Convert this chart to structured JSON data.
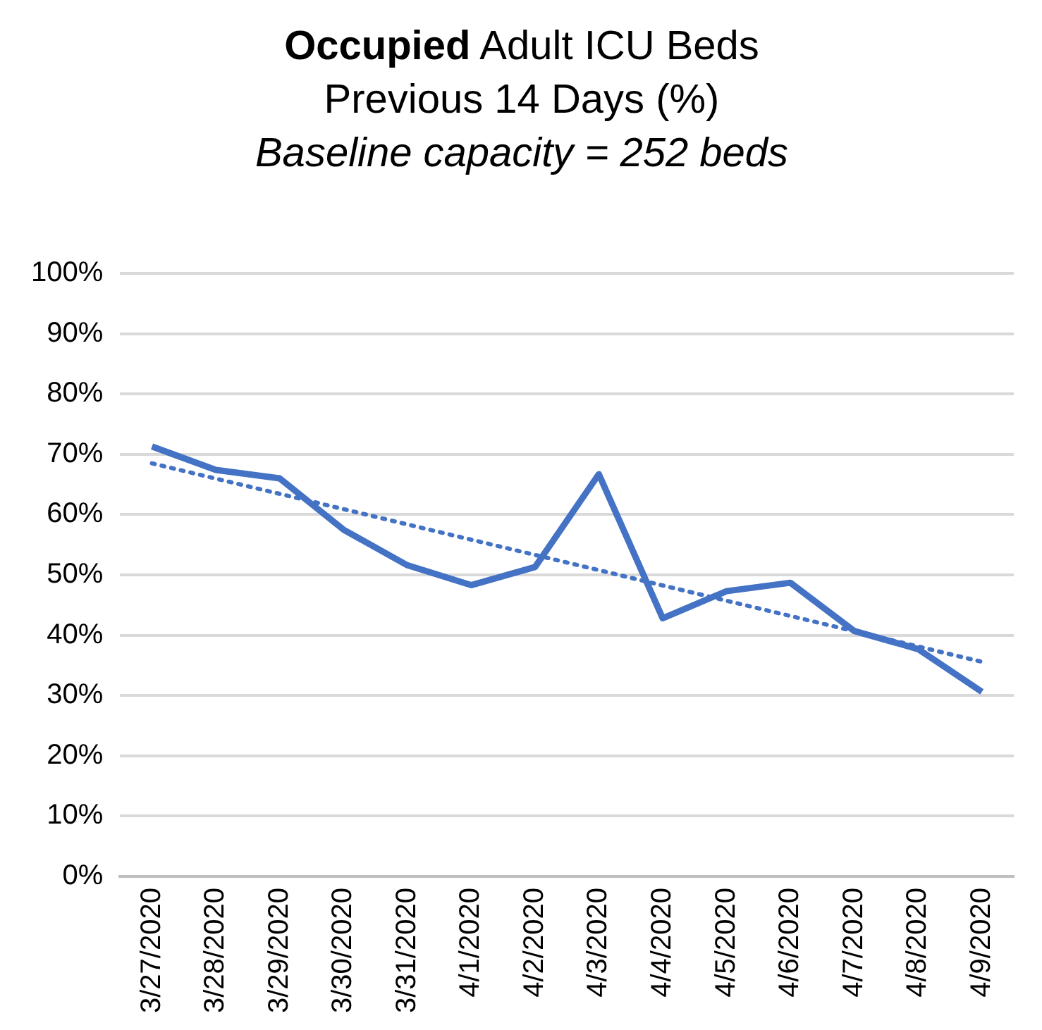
{
  "chart_data": {
    "type": "line",
    "title": "Occupied Adult ICU Beds",
    "subtitle": "Previous 14 Days (%)",
    "annotations": [
      "Baseline capacity = 252 beds"
    ],
    "categories": [
      "3/27/2020",
      "3/28/2020",
      "3/29/2020",
      "3/30/2020",
      "3/31/2020",
      "4/1/2020",
      "4/2/2020",
      "4/3/2020",
      "4/4/2020",
      "4/5/2020",
      "4/6/2020",
      "4/7/2020",
      "4/8/2020",
      "4/9/2020"
    ],
    "series": [
      {
        "color": "#4472c4",
        "values": [
          71.3,
          67.4,
          66,
          57.5,
          51.6,
          48.3,
          51.3,
          66.7,
          42.8,
          47.3,
          48.7,
          40.7,
          37.7,
          30.6
        ],
        "line_style": "solid"
      },
      {
        "type": "line",
        "color": "#4472c4",
        "x": [
          "3/27/2020",
          "4/9/2020"
        ],
        "values": [
          68.5,
          35.6
        ],
        "line_style": "dotted"
      }
    ],
    "ylim": [
      0,
      100
    ],
    "yticks": [
      {
        "value": 0,
        "label": "0%"
      },
      {
        "value": 10,
        "label": "10%"
      },
      {
        "value": 20,
        "label": "20%"
      },
      {
        "value": 30,
        "label": "30%"
      },
      {
        "value": 40,
        "label": "40%"
      },
      {
        "value": 50,
        "label": "50%"
      },
      {
        "value": 60,
        "label": "60%"
      },
      {
        "value": 70,
        "label": "70%"
      },
      {
        "value": 80,
        "label": "80%"
      },
      {
        "value": 90,
        "label": "90%"
      },
      {
        "value": 100,
        "label": "100%"
      }
    ],
    "grid": "y",
    "legend": false,
    "marker": "none"
  }
}
